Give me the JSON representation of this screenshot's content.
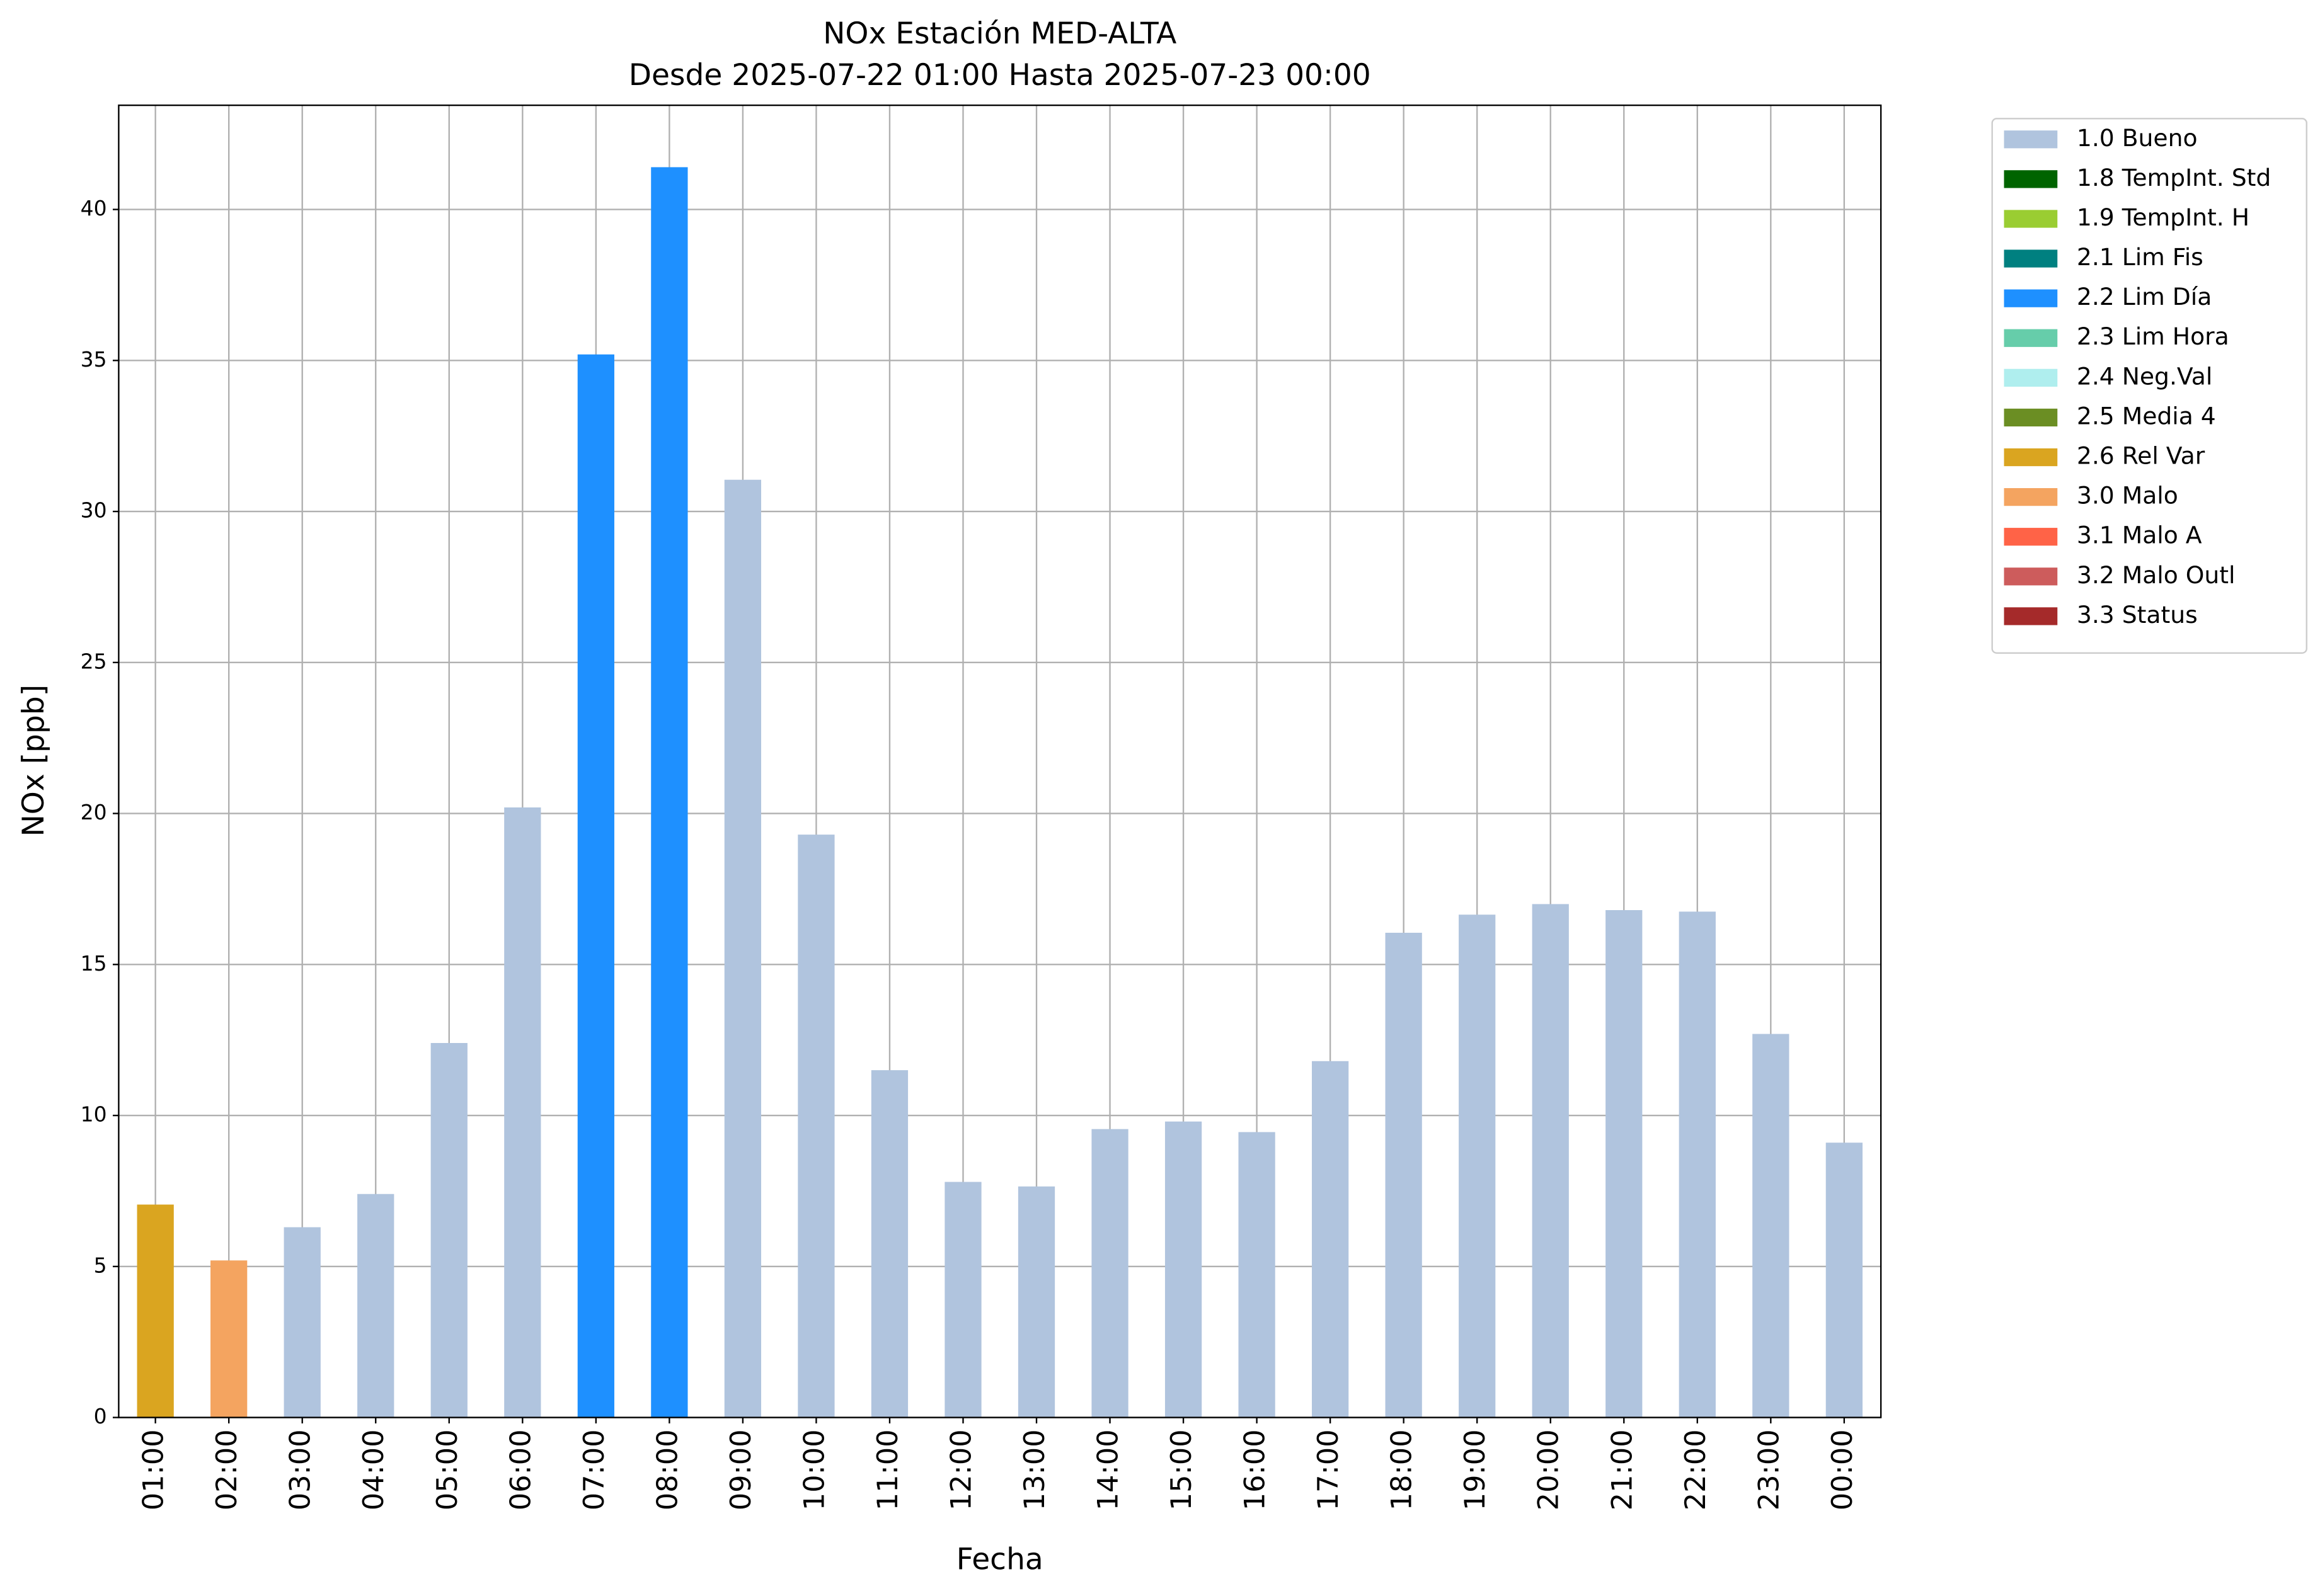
{
  "chart_data": {
    "type": "bar",
    "title": "NOx Estación MED-ALTA",
    "subtitle": "Desde 2025-07-22 01:00 Hasta 2025-07-23 00:00",
    "x_label": "Fecha",
    "y_label": "NOx [ppb]",
    "categories": [
      "01:00",
      "02:00",
      "03:00",
      "04:00",
      "05:00",
      "06:00",
      "07:00",
      "08:00",
      "09:00",
      "10:00",
      "11:00",
      "12:00",
      "13:00",
      "14:00",
      "15:00",
      "16:00",
      "17:00",
      "18:00",
      "19:00",
      "20:00",
      "21:00",
      "22:00",
      "23:00",
      "00:00"
    ],
    "series": [
      {
        "name": "1.0 Bueno",
        "color": "#b0c4de",
        "values": [
          null,
          null,
          6.3,
          7.4,
          12.4,
          20.2,
          null,
          null,
          31.05,
          19.3,
          11.5,
          7.8,
          7.65,
          9.55,
          9.8,
          9.45,
          11.8,
          16.05,
          16.65,
          17.0,
          16.8,
          16.75,
          12.7,
          9.1
        ]
      },
      {
        "name": "1.8 TempInt. Std",
        "color": "#006400",
        "values": [
          null,
          null,
          null,
          null,
          null,
          null,
          null,
          null,
          null,
          null,
          null,
          null,
          null,
          null,
          null,
          null,
          null,
          null,
          null,
          null,
          null,
          null,
          null,
          null
        ]
      },
      {
        "name": "1.9 TempInt. H",
        "color": "#9acd32",
        "values": [
          null,
          null,
          null,
          null,
          null,
          null,
          null,
          null,
          null,
          null,
          null,
          null,
          null,
          null,
          null,
          null,
          null,
          null,
          null,
          null,
          null,
          null,
          null,
          null
        ]
      },
      {
        "name": "2.1 Lim Fis",
        "color": "#008080",
        "values": [
          null,
          null,
          null,
          null,
          null,
          null,
          null,
          null,
          null,
          null,
          null,
          null,
          null,
          null,
          null,
          null,
          null,
          null,
          null,
          null,
          null,
          null,
          null,
          null
        ]
      },
      {
        "name": "2.2 Lim Día",
        "color": "#1e90ff",
        "values": [
          null,
          null,
          null,
          null,
          null,
          null,
          35.2,
          41.4,
          null,
          null,
          null,
          null,
          null,
          null,
          null,
          null,
          null,
          null,
          null,
          null,
          null,
          null,
          null,
          null
        ]
      },
      {
        "name": "2.3 Lim Hora",
        "color": "#66cdaa",
        "values": [
          null,
          null,
          null,
          null,
          null,
          null,
          null,
          null,
          null,
          null,
          null,
          null,
          null,
          null,
          null,
          null,
          null,
          null,
          null,
          null,
          null,
          null,
          null,
          null
        ]
      },
      {
        "name": "2.4 Neg.Val",
        "color": "#afeeee",
        "values": [
          null,
          null,
          null,
          null,
          null,
          null,
          null,
          null,
          null,
          null,
          null,
          null,
          null,
          null,
          null,
          null,
          null,
          null,
          null,
          null,
          null,
          null,
          null,
          null
        ]
      },
      {
        "name": "2.5 Media 4",
        "color": "#6b8e23",
        "values": [
          null,
          null,
          null,
          null,
          null,
          null,
          null,
          null,
          null,
          null,
          null,
          null,
          null,
          null,
          null,
          null,
          null,
          null,
          null,
          null,
          null,
          null,
          null,
          null
        ]
      },
      {
        "name": "2.6 Rel Var",
        "color": "#daa520",
        "values": [
          7.05,
          null,
          null,
          null,
          null,
          null,
          null,
          null,
          null,
          null,
          null,
          null,
          null,
          null,
          null,
          null,
          null,
          null,
          null,
          null,
          null,
          null,
          null,
          null
        ]
      },
      {
        "name": "3.0 Malo",
        "color": "#f4a460",
        "values": [
          null,
          5.2,
          null,
          null,
          null,
          null,
          null,
          null,
          null,
          null,
          null,
          null,
          null,
          null,
          null,
          null,
          null,
          null,
          null,
          null,
          null,
          null,
          null,
          null
        ]
      },
      {
        "name": "3.1 Malo A",
        "color": "#ff6347",
        "values": [
          null,
          null,
          null,
          null,
          null,
          null,
          null,
          null,
          null,
          null,
          null,
          null,
          null,
          null,
          null,
          null,
          null,
          null,
          null,
          null,
          null,
          null,
          null,
          null
        ]
      },
      {
        "name": "3.2 Malo Outl",
        "color": "#cd5c5c",
        "values": [
          null,
          null,
          null,
          null,
          null,
          null,
          null,
          null,
          null,
          null,
          null,
          null,
          null,
          null,
          null,
          null,
          null,
          null,
          null,
          null,
          null,
          null,
          null,
          null
        ]
      },
      {
        "name": "3.3 Status",
        "color": "#a52a2a",
        "values": [
          null,
          null,
          null,
          null,
          null,
          null,
          null,
          null,
          null,
          null,
          null,
          null,
          null,
          null,
          null,
          null,
          null,
          null,
          null,
          null,
          null,
          null,
          null,
          null
        ]
      }
    ],
    "ylim": [
      0,
      43.45
    ],
    "yticks": [
      0,
      5,
      10,
      15,
      20,
      25,
      30,
      35,
      40
    ],
    "grid": true,
    "stacked": true,
    "legend": "outside-right"
  }
}
